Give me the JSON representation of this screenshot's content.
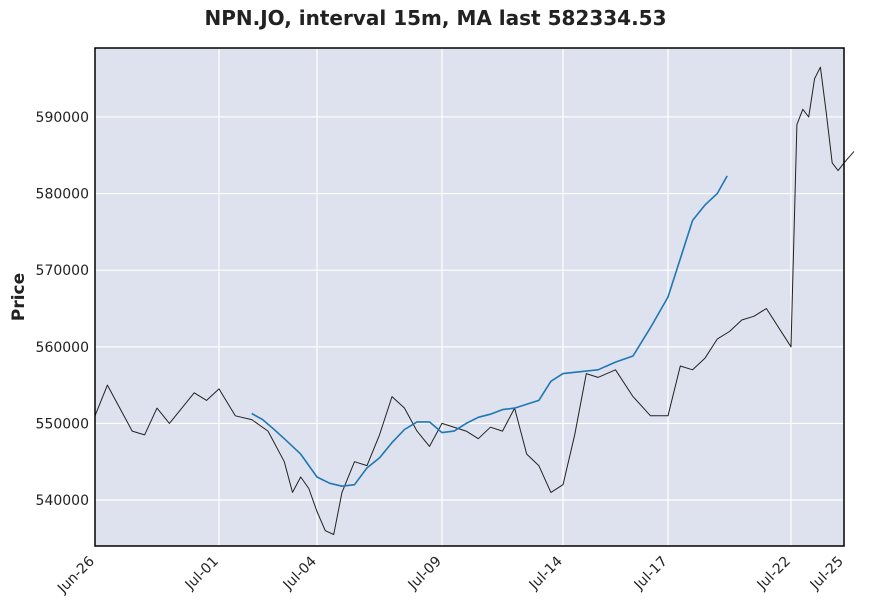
{
  "chart_data": {
    "type": "line",
    "title": "NPN.JO, interval 15m, MA last 582334.53",
    "xlabel": "",
    "ylabel": "Price",
    "xlim": [
      "Jun-26",
      "Jul-25"
    ],
    "ylim": [
      534000,
      599000
    ],
    "grid": true,
    "x_ticks": [
      "Jun-26",
      "Jul-01",
      "Jul-04",
      "Jul-09",
      "Jul-14",
      "Jul-17",
      "Jul-22",
      "Jul-25"
    ],
    "y_ticks": [
      540000,
      550000,
      560000,
      570000,
      580000,
      590000
    ],
    "series": [
      {
        "role": "price",
        "color": "#222222",
        "points": [
          [
            "Jun-26",
            551000
          ],
          [
            "Jun-26",
            555000
          ],
          [
            "Jun-27",
            552000
          ],
          [
            "Jun-27",
            549000
          ],
          [
            "Jun-28",
            548500
          ],
          [
            "Jun-28",
            552000
          ],
          [
            "Jun-29",
            550000
          ],
          [
            "Jun-30",
            554000
          ],
          [
            "Jun-30",
            553000
          ],
          [
            "Jul-01",
            554500
          ],
          [
            "Jul-01",
            551000
          ],
          [
            "Jul-02",
            550500
          ],
          [
            "Jul-02",
            549000
          ],
          [
            "Jul-03",
            545000
          ],
          [
            "Jul-03",
            541000
          ],
          [
            "Jul-03",
            543000
          ],
          [
            "Jul-03",
            541500
          ],
          [
            "Jul-04",
            538500
          ],
          [
            "Jul-04",
            536000
          ],
          [
            "Jul-04",
            535500
          ],
          [
            "Jul-05",
            541000
          ],
          [
            "Jul-05",
            545000
          ],
          [
            "Jul-06",
            544500
          ],
          [
            "Jul-06",
            548500
          ],
          [
            "Jul-07",
            553500
          ],
          [
            "Jul-07",
            552000
          ],
          [
            "Jul-08",
            549000
          ],
          [
            "Jul-08",
            547000
          ],
          [
            "Jul-09",
            550000
          ],
          [
            "Jul-10",
            549000
          ],
          [
            "Jul-10",
            548000
          ],
          [
            "Jul-11",
            549500
          ],
          [
            "Jul-11",
            549000
          ],
          [
            "Jul-12",
            552000
          ],
          [
            "Jul-12",
            546000
          ],
          [
            "Jul-13",
            544500
          ],
          [
            "Jul-13",
            541000
          ],
          [
            "Jul-14",
            542000
          ],
          [
            "Jul-14",
            548500
          ],
          [
            "Jul-14",
            556500
          ],
          [
            "Jul-15",
            556000
          ],
          [
            "Jul-15",
            557000
          ],
          [
            "Jul-16",
            553500
          ],
          [
            "Jul-16",
            551000
          ],
          [
            "Jul-17",
            551000
          ],
          [
            "Jul-17",
            557500
          ],
          [
            "Jul-18",
            557000
          ],
          [
            "Jul-18",
            558500
          ],
          [
            "Jul-19",
            561000
          ],
          [
            "Jul-19",
            562000
          ],
          [
            "Jul-20",
            563500
          ],
          [
            "Jul-20",
            564000
          ],
          [
            "Jul-21",
            565000
          ],
          [
            "Jul-22",
            560000
          ],
          [
            "Jul-22",
            589000
          ],
          [
            "Jul-22",
            591000
          ],
          [
            "Jul-23",
            590000
          ],
          [
            "Jul-23",
            595000
          ],
          [
            "Jul-23",
            596500
          ],
          [
            "Jul-24",
            590500
          ],
          [
            "Jul-24",
            584000
          ],
          [
            "Jul-24",
            583000
          ],
          [
            "Jul-25",
            584000
          ],
          [
            "Jul-25",
            585500
          ]
        ]
      },
      {
        "role": "moving-average",
        "color": "#1f77b4",
        "points": [
          [
            "Jul-02",
            551300
          ],
          [
            "Jul-02",
            550500
          ],
          [
            "Jul-02",
            549300
          ],
          [
            "Jul-03",
            548000
          ],
          [
            "Jul-03",
            546000
          ],
          [
            "Jul-04",
            543000
          ],
          [
            "Jul-04",
            542200
          ],
          [
            "Jul-05",
            541800
          ],
          [
            "Jul-05",
            542000
          ],
          [
            "Jul-06",
            544200
          ],
          [
            "Jul-06",
            545500
          ],
          [
            "Jul-07",
            547500
          ],
          [
            "Jul-07",
            549200
          ],
          [
            "Jul-08",
            550200
          ],
          [
            "Jul-08",
            550200
          ],
          [
            "Jul-09",
            548800
          ],
          [
            "Jul-09",
            549000
          ],
          [
            "Jul-10",
            550000
          ],
          [
            "Jul-10",
            550800
          ],
          [
            "Jul-11",
            551200
          ],
          [
            "Jul-11",
            551800
          ],
          [
            "Jul-12",
            552000
          ],
          [
            "Jul-13",
            553000
          ],
          [
            "Jul-13",
            555500
          ],
          [
            "Jul-14",
            556500
          ],
          [
            "Jul-15",
            557000
          ],
          [
            "Jul-15",
            558000
          ],
          [
            "Jul-16",
            558800
          ],
          [
            "Jul-16",
            562500
          ],
          [
            "Jul-17",
            566500
          ],
          [
            "Jul-17",
            571500
          ],
          [
            "Jul-18",
            576500
          ],
          [
            "Jul-18",
            578500
          ],
          [
            "Jul-19",
            580000
          ],
          [
            "Jul-19",
            582300
          ]
        ]
      }
    ]
  }
}
